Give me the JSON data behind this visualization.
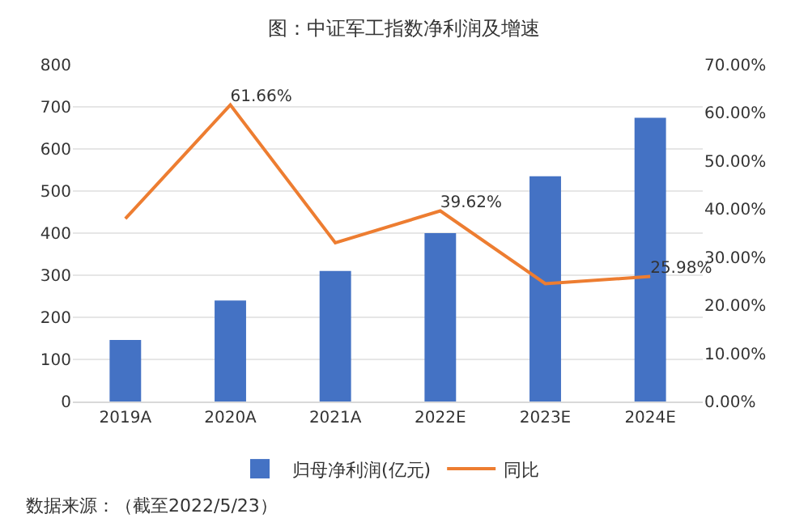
{
  "chart_data": {
    "type": "bar",
    "title": "图：中证军工指数净利润及增速",
    "categories": [
      "2019A",
      "2020A",
      "2021A",
      "2022E",
      "2023E",
      "2024E"
    ],
    "series": [
      {
        "name": "归母净利润(亿元)",
        "type": "bar",
        "color": "#4472c4",
        "values": [
          146,
          240,
          310,
          400,
          535,
          674
        ]
      },
      {
        "name": "同比",
        "type": "line",
        "axis": "y2",
        "color": "#ed7d31",
        "values": [
          38,
          61.66,
          33,
          39.62,
          24.5,
          25.98
        ],
        "value_labels": [
          null,
          "61.66%",
          null,
          "39.62%",
          null,
          "25.98%"
        ]
      }
    ],
    "ylim": [
      0,
      800
    ],
    "yticks": [
      0,
      100,
      200,
      300,
      400,
      500,
      600,
      700,
      800
    ],
    "y2lim": [
      0,
      70
    ],
    "y2ticks": [
      {
        "value": 0,
        "label": "0.00%"
      },
      {
        "value": 10,
        "label": "10.00%"
      },
      {
        "value": 20,
        "label": "20.00%"
      },
      {
        "value": 30,
        "label": "30.00%"
      },
      {
        "value": 40,
        "label": "40.00%"
      },
      {
        "value": 50,
        "label": "50.00%"
      },
      {
        "value": 60,
        "label": "60.00%"
      },
      {
        "value": 70,
        "label": "70.00%"
      }
    ],
    "grid": "y",
    "legend": "bottom",
    "marker": "none",
    "line_style": "solid",
    "annotations": [
      "数据来源：（截至2022/5/23）"
    ]
  }
}
